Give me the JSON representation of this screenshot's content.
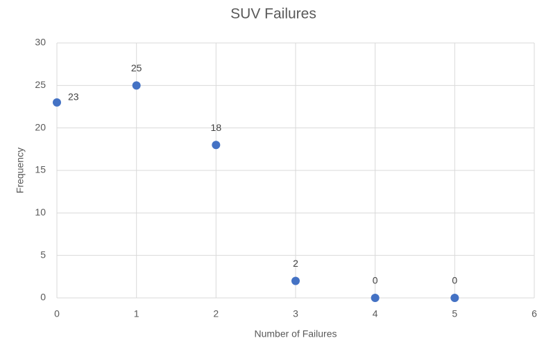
{
  "chart_data": {
    "type": "scatter",
    "title": "SUV Failures",
    "x_label": "Number of Failures",
    "y_label": "Frequency",
    "series": [
      {
        "x": [
          0,
          1,
          2,
          3,
          4,
          5
        ],
        "values": [
          23,
          25,
          18,
          2,
          0,
          0
        ],
        "color": "#4472c4"
      }
    ],
    "xlim": [
      0,
      6
    ],
    "xticks": [
      0,
      1,
      2,
      3,
      4,
      5,
      6
    ],
    "ylim": [
      0,
      30
    ],
    "yticks": [
      0,
      5,
      10,
      15,
      20,
      25,
      30
    ],
    "grid": true,
    "data_labels": true
  }
}
